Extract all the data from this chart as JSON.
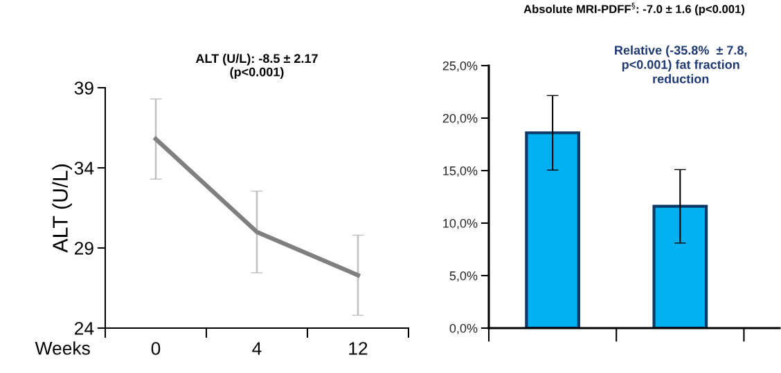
{
  "chart_data": [
    {
      "type": "line",
      "title": "ALT (U/L): -8.5 ± 2.17\n(p<0.001)",
      "xlabel": "Weeks",
      "ylabel": "ALT (U/L)",
      "categories": [
        "0",
        "4",
        "12"
      ],
      "series": [
        {
          "color": "#7f7f7f",
          "values": [
            35.8,
            30.0,
            27.3
          ],
          "errors": [
            2.5,
            2.55,
            2.5
          ]
        }
      ],
      "ylim": [
        24,
        39
      ],
      "yticks": [
        24,
        29,
        34,
        39
      ],
      "grid": false,
      "legend": false,
      "marker": "none",
      "line_style": "solid"
    },
    {
      "type": "bar",
      "title": "Absolute MRI-PDFF$^{§}$: -7.0 ± 1.6 (p<0.001)",
      "categories": [
        null,
        null
      ],
      "series": [
        {
          "color": "#00b0f0",
          "values": [
            18.6,
            11.6
          ],
          "errors": [
            3.55,
            3.5
          ]
        }
      ],
      "annotations": [
        "Relative (-35.8%  ± 7.8,\np<0.001) fat fraction\nreduction"
      ],
      "ylim": [
        0,
        25
      ],
      "yticks": [
        {
          "value": 0,
          "label": "0,0%"
        },
        {
          "value": 5,
          "label": "5,0%"
        },
        {
          "value": 10,
          "label": "10,0%"
        },
        {
          "value": 15,
          "label": "15,0%"
        },
        {
          "value": 20,
          "label": "20,0%"
        },
        {
          "value": 25,
          "label": "25,0%"
        }
      ],
      "grid": false,
      "legend": false
    }
  ]
}
